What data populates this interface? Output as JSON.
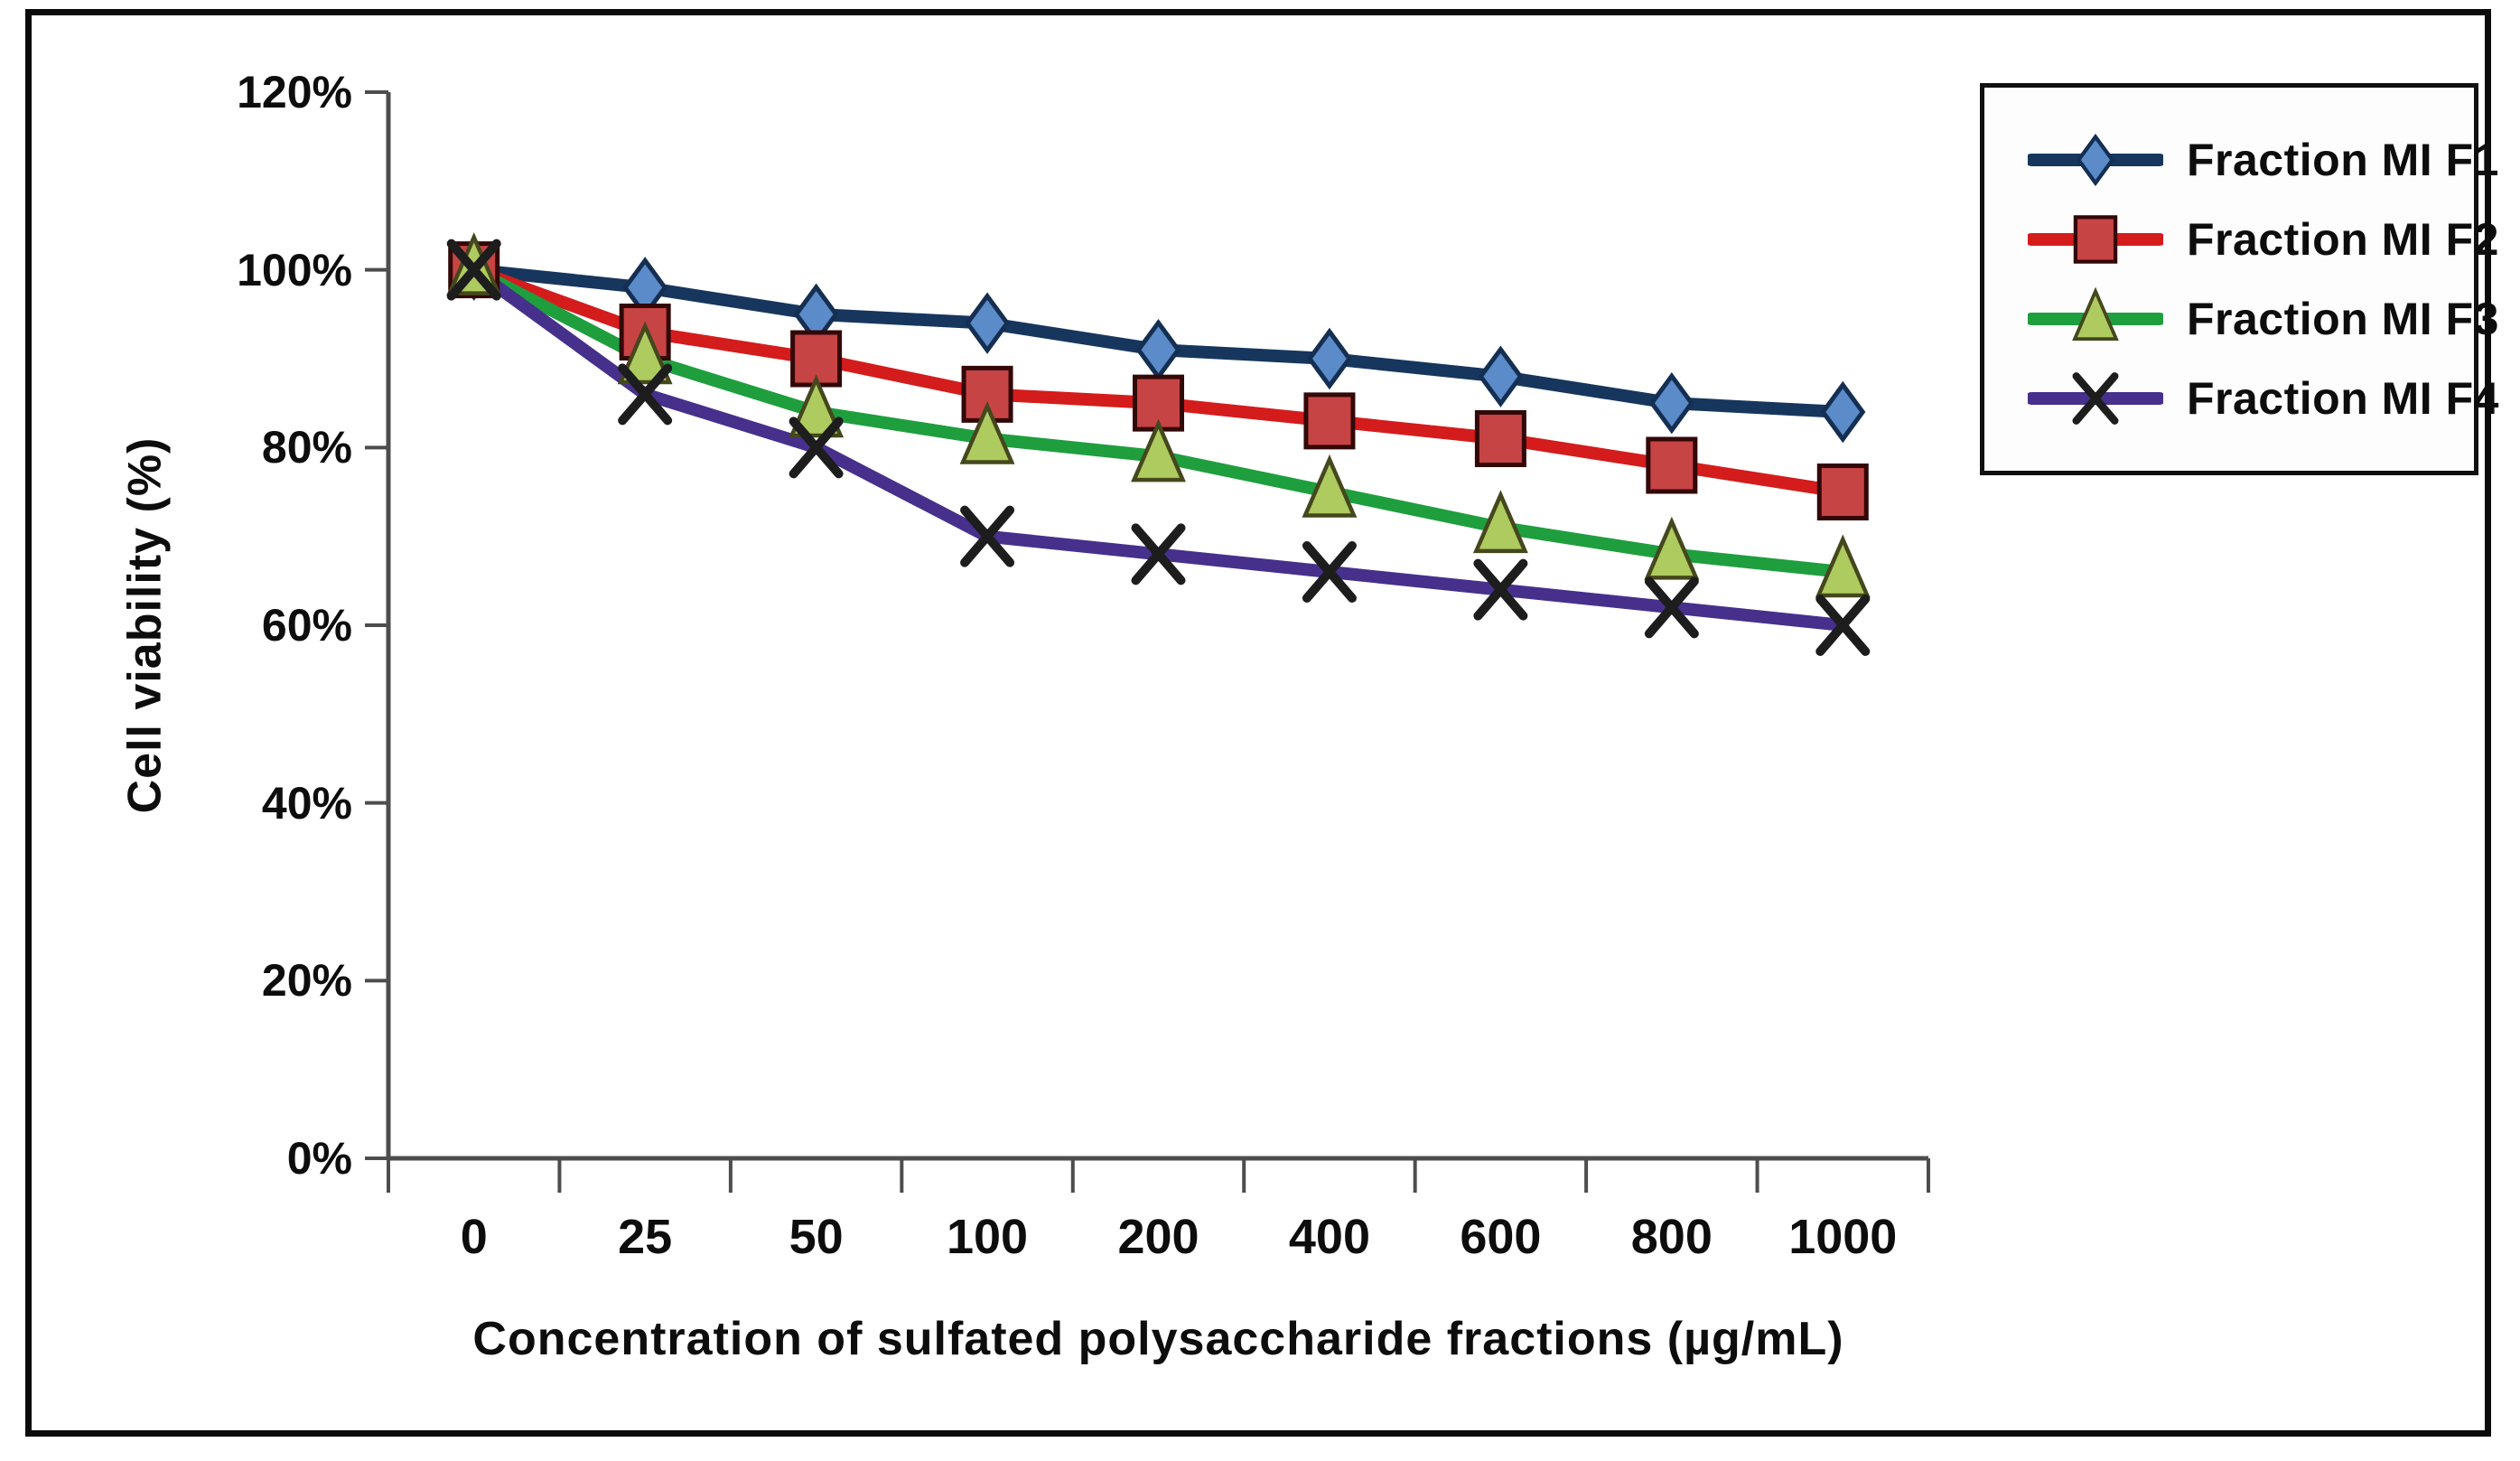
{
  "chart_data": {
    "type": "line",
    "title": "",
    "xlabel": "Concentration of sulfated polysaccharide fractions (µg/mL)",
    "ylabel": "Cell viability (%)",
    "categories": [
      0,
      25,
      50,
      100,
      200,
      400,
      600,
      800,
      1000
    ],
    "x_tick_labels": [
      "0",
      "25",
      "50",
      "100",
      "200",
      "400",
      "600",
      "800",
      "1000"
    ],
    "y_tick_labels": [
      "120%",
      "100%",
      "80%",
      "60%",
      "40%",
      "20%",
      "0%"
    ],
    "y_tick_values": [
      120,
      100,
      80,
      60,
      40,
      20,
      0
    ],
    "ylim": [
      0,
      120
    ],
    "grid": false,
    "legend_position": "top-right",
    "axis_color": "#4d4d4d",
    "series": [
      {
        "name": "Fraction MI F1",
        "marker": "diamond",
        "line_color": "#17365d",
        "marker_fill": "#5b8bc9",
        "marker_stroke": "#142f52",
        "values": [
          100,
          98,
          95,
          94,
          91,
          90,
          88,
          85,
          84
        ]
      },
      {
        "name": "Fraction MI F2",
        "marker": "square",
        "line_color": "#d41c1c",
        "marker_fill": "#c74444",
        "marker_stroke": "#320808",
        "values": [
          100,
          93,
          90,
          86,
          85,
          83,
          81,
          78,
          75
        ]
      },
      {
        "name": "Fraction MI F3",
        "marker": "triangle",
        "line_color": "#1f9e3e",
        "marker_fill": "#aecb5f",
        "marker_stroke": "#45471d",
        "values": [
          100,
          90,
          84,
          81,
          79,
          75,
          71,
          68,
          66
        ]
      },
      {
        "name": "Fraction MI F4",
        "marker": "x",
        "line_color": "#46308c",
        "marker_fill": "none",
        "marker_stroke": "#1d1d1d",
        "values": [
          100,
          86,
          80,
          70,
          68,
          66,
          64,
          62,
          60
        ]
      }
    ]
  }
}
